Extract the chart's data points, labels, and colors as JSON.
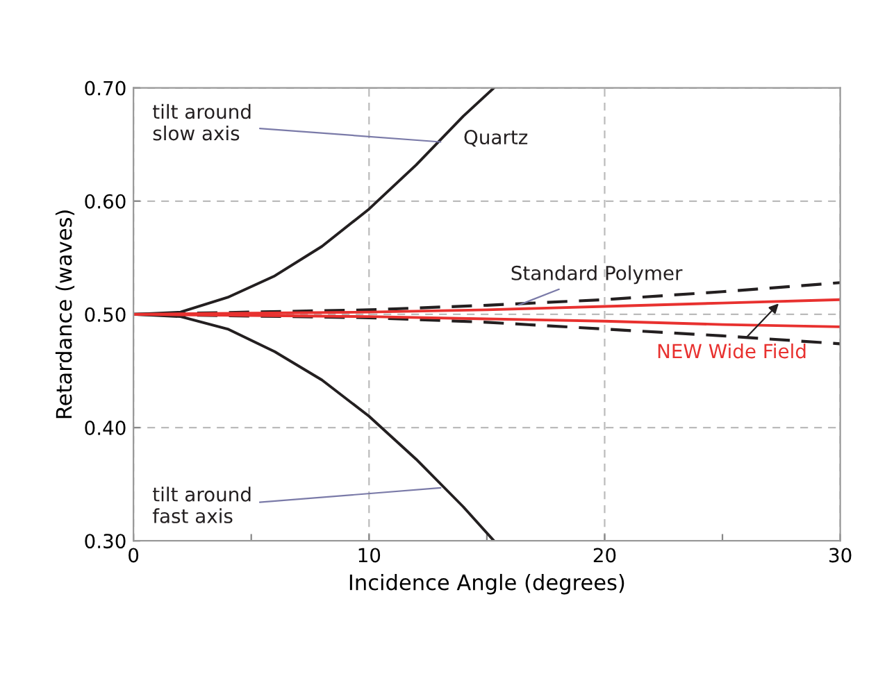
{
  "chart_data": {
    "type": "line",
    "xlabel": "Incidence Angle (degrees)",
    "ylabel": "Retardance (waves)",
    "xlim": [
      0,
      30
    ],
    "ylim": [
      0.3,
      0.7
    ],
    "xticks": [
      0,
      {
        "value": 5,
        "label": null
      },
      10,
      {
        "value": 15,
        "label": null
      },
      20,
      {
        "value": 25,
        "label": null
      },
      30
    ],
    "yticks": [
      {
        "value": 0.3,
        "label": "0.30"
      },
      {
        "value": 0.4,
        "label": "0.40"
      },
      {
        "value": 0.5,
        "label": "0.50"
      },
      {
        "value": 0.6,
        "label": "0.60"
      },
      {
        "value": 0.7,
        "label": "0.70"
      }
    ],
    "grid": true,
    "legend": false,
    "series": [
      {
        "color": "#231f20",
        "line_style": "solid",
        "x": [
          0,
          2,
          4,
          6,
          8,
          10,
          12,
          14,
          15.3
        ],
        "values": [
          0.5,
          0.502,
          0.515,
          0.534,
          0.56,
          0.593,
          0.632,
          0.675,
          0.7
        ]
      },
      {
        "color": "#231f20",
        "line_style": "solid",
        "x": [
          0,
          2,
          4,
          6,
          8,
          10,
          12,
          14,
          15.3
        ],
        "values": [
          0.5,
          0.498,
          0.487,
          0.467,
          0.442,
          0.41,
          0.372,
          0.33,
          0.3
        ]
      },
      {
        "color": "#231f20",
        "line_style": "dashed",
        "x": [
          0,
          10,
          15,
          20,
          25,
          30
        ],
        "values": [
          0.5,
          0.504,
          0.508,
          0.513,
          0.52,
          0.528
        ]
      },
      {
        "color": "#231f20",
        "line_style": "dashed",
        "x": [
          0,
          10,
          15,
          20,
          25,
          30
        ],
        "values": [
          0.5,
          0.497,
          0.493,
          0.487,
          0.481,
          0.474
        ]
      },
      {
        "color": "#e8312f",
        "line_style": "solid",
        "x": [
          0,
          5,
          10,
          15,
          20,
          25,
          30
        ],
        "values": [
          0.5,
          0.501,
          0.502,
          0.504,
          0.507,
          0.51,
          0.513
        ]
      },
      {
        "color": "#e8312f",
        "line_style": "solid",
        "x": [
          0,
          5,
          10,
          15,
          20,
          25,
          30
        ],
        "values": [
          0.5,
          0.499,
          0.498,
          0.496,
          0.494,
          0.491,
          0.489
        ]
      }
    ],
    "annotations": [
      {
        "text": "tilt around\nslow axis",
        "x": 13.2,
        "y": 0.652
      },
      {
        "text": "tilt around\nfast axis",
        "x": 13.2,
        "y": 0.347
      },
      {
        "text": "Quartz",
        "x": 13.2,
        "y": 0.652
      },
      {
        "text": "Standard Polymer",
        "x": 16.2,
        "y": 0.507
      },
      {
        "text": "NEW Wide Field",
        "x": 27.5,
        "y": 0.512
      }
    ]
  }
}
